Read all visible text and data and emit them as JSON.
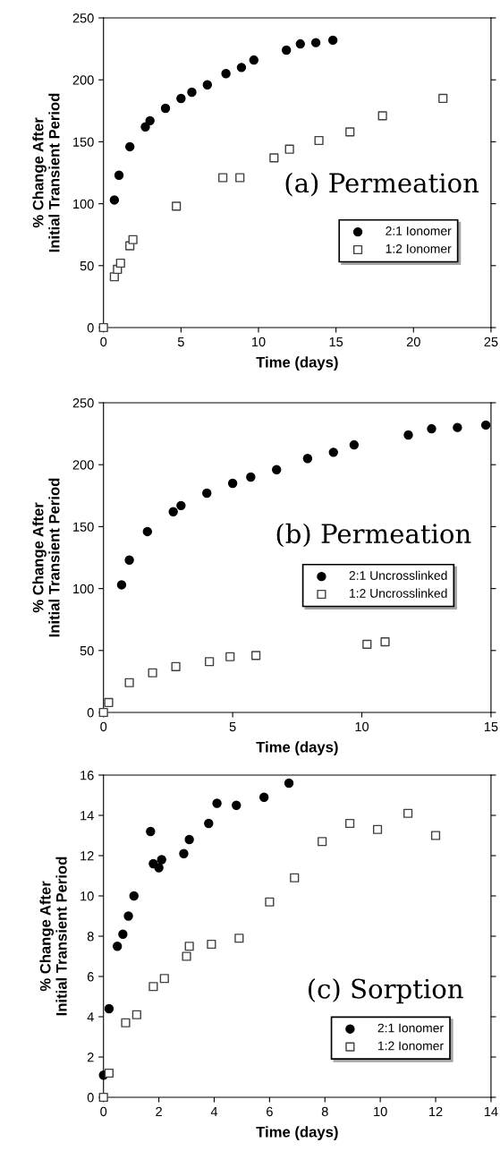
{
  "chart_data": [
    {
      "type": "scatter",
      "xlabel": "Time (days)",
      "ylabel": "% Change After\nInitial Transient Period",
      "annotations": [
        "(a) Permeation"
      ],
      "xlim": [
        0,
        25
      ],
      "xticks": [
        0,
        5,
        10,
        15,
        20,
        25
      ],
      "ylim": [
        0,
        250
      ],
      "yticks": [
        0,
        50,
        100,
        150,
        200,
        250
      ],
      "legend": "right",
      "grid": false,
      "series": [
        {
          "name": "2:1 Ionomer",
          "color": "#000000",
          "marker": "circle",
          "x": [
            0.7,
            1.0,
            1.7,
            2.7,
            3.0,
            4.0,
            5.0,
            5.7,
            6.7,
            7.9,
            8.9,
            9.7,
            11.8,
            12.7,
            13.7,
            14.8
          ],
          "values": [
            103,
            123,
            146,
            162,
            167,
            177,
            185,
            190,
            196,
            205,
            210,
            216,
            224,
            229,
            230,
            232
          ]
        },
        {
          "name": "1:2 Ionomer",
          "color": "#404040",
          "marker": "square",
          "x": [
            0,
            0.7,
            0.9,
            1.1,
            1.7,
            1.9,
            4.7,
            7.7,
            8.8,
            11.0,
            12.0,
            13.9,
            15.9,
            18.0,
            21.9
          ],
          "values": [
            0,
            41,
            47,
            52,
            66,
            71,
            98,
            121,
            121,
            137,
            144,
            151,
            158,
            171,
            185
          ]
        }
      ]
    },
    {
      "type": "scatter",
      "xlabel": "Time (days)",
      "ylabel": "% Change After\nInitial Transient Period",
      "annotations": [
        "(b) Permeation"
      ],
      "xlim": [
        0,
        15
      ],
      "xticks": [
        0,
        5,
        10,
        15
      ],
      "ylim": [
        0,
        250
      ],
      "yticks": [
        0,
        50,
        100,
        150,
        200,
        250
      ],
      "legend": "right",
      "grid": false,
      "series": [
        {
          "name": "2:1 Uncrosslinked",
          "color": "#000000",
          "marker": "circle",
          "x": [
            0.7,
            1.0,
            1.7,
            2.7,
            3.0,
            4.0,
            5.0,
            5.7,
            6.7,
            7.9,
            8.9,
            9.7,
            11.8,
            12.7,
            13.7,
            14.8
          ],
          "values": [
            103,
            123,
            146,
            162,
            167,
            177,
            185,
            190,
            196,
            205,
            210,
            216,
            224,
            229,
            230,
            232
          ]
        },
        {
          "name": "1:2 Uncrosslinked",
          "color": "#404040",
          "marker": "square",
          "x": [
            0,
            0.2,
            1.0,
            1.9,
            2.8,
            4.1,
            4.9,
            5.9,
            10.2,
            10.9
          ],
          "values": [
            0,
            8,
            24,
            32,
            37,
            41,
            45,
            46,
            55,
            57
          ]
        }
      ]
    },
    {
      "type": "scatter",
      "xlabel": "Time (days)",
      "ylabel": "% Change After\nInitial Transient Period",
      "annotations": [
        "(c) Sorption"
      ],
      "xlim": [
        0,
        14
      ],
      "xticks": [
        0,
        2,
        4,
        6,
        8,
        10,
        12,
        14
      ],
      "ylim": [
        0,
        16
      ],
      "yticks": [
        0,
        2,
        4,
        6,
        8,
        10,
        12,
        14,
        16
      ],
      "legend": "bottom right",
      "grid": false,
      "series": [
        {
          "name": "2:1 Ionomer",
          "color": "#000000",
          "marker": "circle",
          "x": [
            0.0,
            0.2,
            0.5,
            0.7,
            0.9,
            1.1,
            1.7,
            1.8,
            2.0,
            2.1,
            2.9,
            3.1,
            3.8,
            4.1,
            4.8,
            5.8,
            6.7
          ],
          "values": [
            1.1,
            4.4,
            7.5,
            8.1,
            9.0,
            10.0,
            13.2,
            11.6,
            11.4,
            11.8,
            12.1,
            12.8,
            13.6,
            14.6,
            14.5,
            14.9,
            15.6
          ]
        },
        {
          "name": "1:2 Ionomer",
          "color": "#404040",
          "marker": "square",
          "x": [
            0,
            0.2,
            0.8,
            1.2,
            1.8,
            2.2,
            3.0,
            3.1,
            3.9,
            4.9,
            6.0,
            6.9,
            7.9,
            8.9,
            9.9,
            11.0,
            12.0
          ],
          "values": [
            0,
            1.2,
            3.7,
            4.1,
            5.5,
            5.9,
            7.0,
            7.5,
            7.6,
            7.9,
            9.7,
            10.9,
            12.7,
            13.6,
            13.3,
            14.1,
            13.0
          ]
        }
      ]
    }
  ]
}
